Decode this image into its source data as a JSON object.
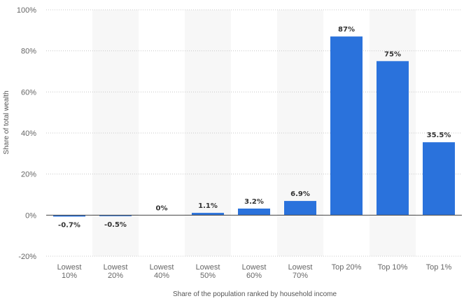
{
  "chart_data": {
    "type": "bar",
    "categories": [
      [
        "Lowest",
        "10%"
      ],
      [
        "Lowest",
        "20%"
      ],
      [
        "Lowest",
        "40%"
      ],
      [
        "Lowest",
        "50%"
      ],
      [
        "Lowest",
        "60%"
      ],
      [
        "Lowest",
        "70%"
      ],
      [
        "Top 20%"
      ],
      [
        "Top 10%"
      ],
      [
        "Top 1%"
      ]
    ],
    "values": [
      -0.7,
      -0.5,
      0,
      1.1,
      3.2,
      6.9,
      87,
      75,
      35.5
    ],
    "data_labels": [
      "-0.7%",
      "-0.5%",
      "0%",
      "1.1%",
      "3.2%",
      "6.9%",
      "87%",
      "75%",
      "35.5%"
    ],
    "title": "",
    "xlabel": "Share of the population ranked by household income",
    "ylabel": "Share of total wealth",
    "ylim": [
      -20,
      100
    ],
    "yticks": [
      -20,
      0,
      20,
      40,
      60,
      80,
      100
    ],
    "ytick_labels": [
      "-20%",
      "0%",
      "20%",
      "40%",
      "60%",
      "80%",
      "100%"
    ],
    "grid": true,
    "alternating_bands": true,
    "legend": "none",
    "colors": {
      "bar": "#2a72dc"
    }
  }
}
